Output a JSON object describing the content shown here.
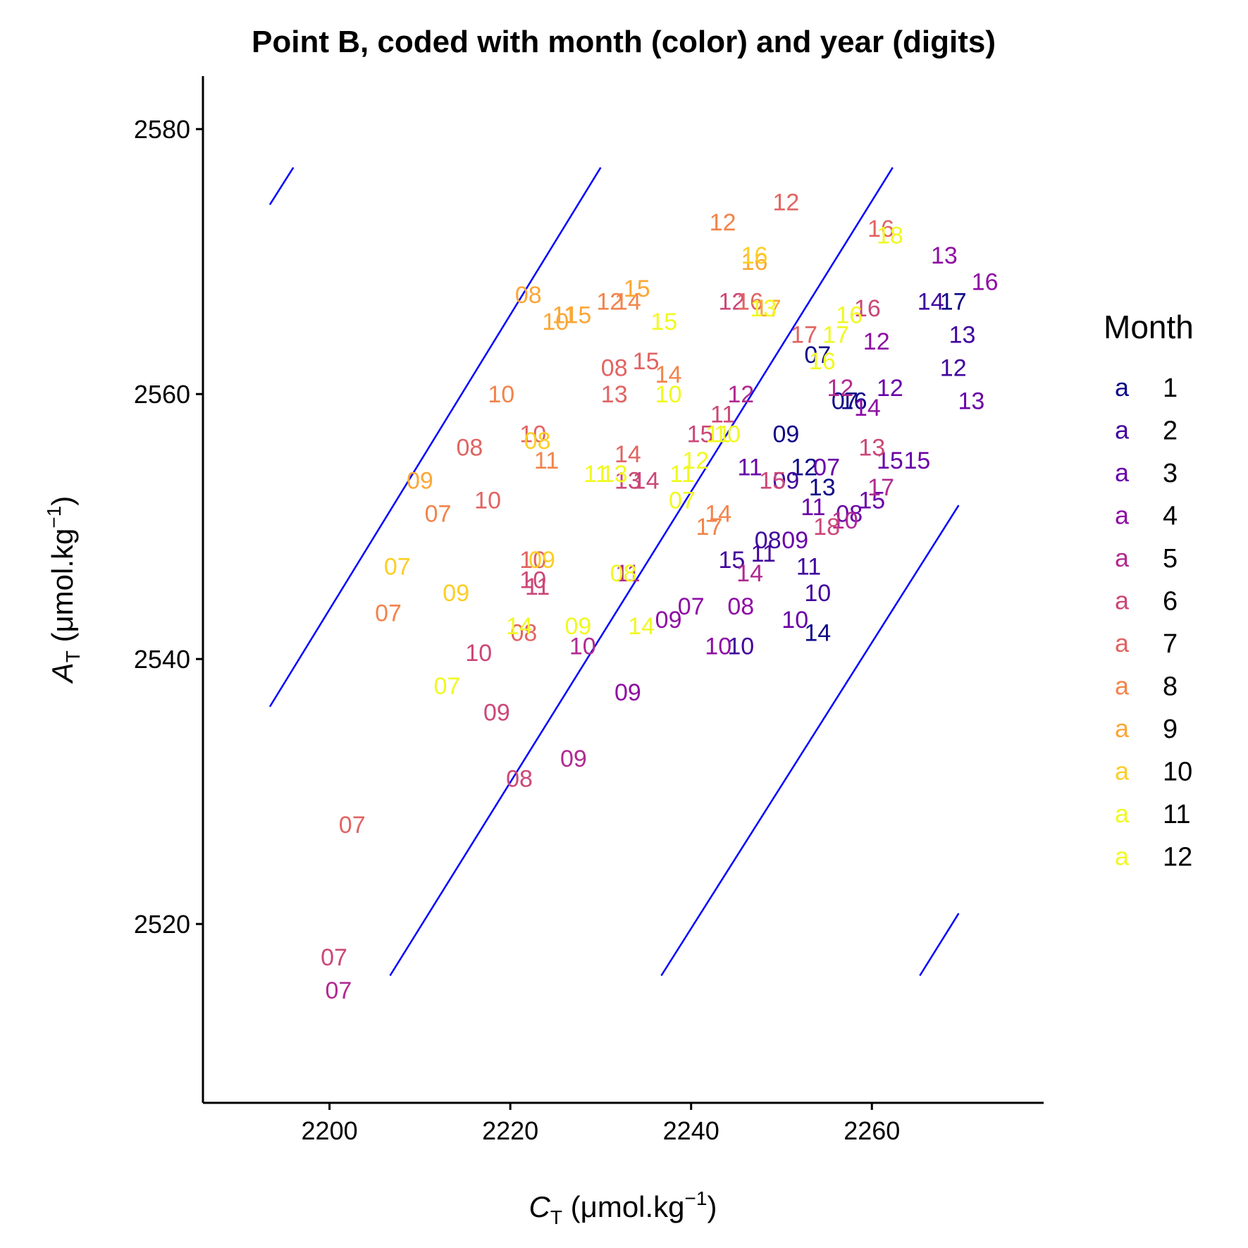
{
  "chart_data": {
    "type": "scatter",
    "title": "Point B, coded with month (color) and year (digits)",
    "xlabel": {
      "symbol": "C",
      "subscript": "T",
      "unit_prefix": " (",
      "unit_mu": "μ",
      "unit_main": "mol.kg",
      "unit_sup": "−1",
      "unit_suffix": ")"
    },
    "ylabel": {
      "symbol": "A",
      "subscript": "T",
      "unit_prefix": " (",
      "unit_mu": "μ",
      "unit_main": "mol.kg",
      "unit_sup": "−1",
      "unit_suffix": ")"
    },
    "xlim": [
      2186,
      2279
    ],
    "ylim": [
      2506.5,
      2584
    ],
    "xticks": [
      2200,
      2220,
      2240,
      2260
    ],
    "yticks": [
      2520,
      2540,
      2560,
      2580
    ],
    "grid": false,
    "legend": {
      "title": "Month",
      "placement": "right",
      "key_glyph": "a",
      "entries": [
        {
          "label": "1",
          "color": "#0d0887"
        },
        {
          "label": "2",
          "color": "#41049d"
        },
        {
          "label": "3",
          "color": "#6a00a8"
        },
        {
          "label": "4",
          "color": "#8f0da4"
        },
        {
          "label": "5",
          "color": "#b12a90"
        },
        {
          "label": "6",
          "color": "#cc4778"
        },
        {
          "label": "7",
          "color": "#e16462"
        },
        {
          "label": "8",
          "color": "#f2844b"
        },
        {
          "label": "9",
          "color": "#fca636"
        },
        {
          "label": "10",
          "color": "#fcce25"
        },
        {
          "label": "11",
          "color": "#f0f921"
        },
        {
          "label": "12",
          "color": "#f0f921"
        }
      ]
    },
    "reference_lines_color": "#0000ff",
    "reference_lines": [
      {
        "x1": 2193.4,
        "y1": 2574.3,
        "x2": 2196.0,
        "y2": 2577.1
      },
      {
        "x1": 2193.4,
        "y1": 2536.4,
        "x2": 2230.0,
        "y2": 2577.1
      },
      {
        "x1": 2206.7,
        "y1": 2516.1,
        "x2": 2262.3,
        "y2": 2577.1
      },
      {
        "x1": 2236.7,
        "y1": 2516.1,
        "x2": 2269.6,
        "y2": 2551.6
      },
      {
        "x1": 2265.3,
        "y1": 2516.1,
        "x2": 2269.6,
        "y2": 2520.8
      }
    ],
    "points": [
      {
        "x": 2254.0,
        "y": 2563.0,
        "label": "07",
        "month": 1
      },
      {
        "x": 2257.0,
        "y": 2559.5,
        "label": "07",
        "month": 1
      },
      {
        "x": 2250.5,
        "y": 2557.0,
        "label": "09",
        "month": 1
      },
      {
        "x": 2252.5,
        "y": 2554.5,
        "label": "12",
        "month": 1
      },
      {
        "x": 2254.5,
        "y": 2553.0,
        "label": "13",
        "month": 1
      },
      {
        "x": 2258.0,
        "y": 2559.5,
        "label": "16",
        "month": 1
      },
      {
        "x": 2269.0,
        "y": 2567.0,
        "label": "17",
        "month": 1
      },
      {
        "x": 2254.0,
        "y": 2542.0,
        "label": "14",
        "month": 1
      },
      {
        "x": 2248.5,
        "y": 2549.0,
        "label": "08",
        "month": 2
      },
      {
        "x": 2250.5,
        "y": 2553.5,
        "label": "09",
        "month": 2
      },
      {
        "x": 2248.0,
        "y": 2548.0,
        "label": "11",
        "month": 2
      },
      {
        "x": 2253.0,
        "y": 2547.0,
        "label": "11",
        "month": 2
      },
      {
        "x": 2254.0,
        "y": 2545.0,
        "label": "10",
        "month": 2
      },
      {
        "x": 2245.5,
        "y": 2541.0,
        "label": "10",
        "month": 2
      },
      {
        "x": 2244.5,
        "y": 2547.5,
        "label": "15",
        "month": 2
      },
      {
        "x": 2269.0,
        "y": 2562.0,
        "label": "12",
        "month": 2
      },
      {
        "x": 2270.0,
        "y": 2564.5,
        "label": "13",
        "month": 2
      },
      {
        "x": 2266.5,
        "y": 2567.0,
        "label": "14",
        "month": 2
      },
      {
        "x": 2265.0,
        "y": 2555.0,
        "label": "15",
        "month": 3
      },
      {
        "x": 2255.0,
        "y": 2554.5,
        "label": "07",
        "month": 3
      },
      {
        "x": 2257.5,
        "y": 2551.0,
        "label": "08",
        "month": 3
      },
      {
        "x": 2253.5,
        "y": 2551.5,
        "label": "11",
        "month": 3
      },
      {
        "x": 2251.5,
        "y": 2543.0,
        "label": "10",
        "month": 3
      },
      {
        "x": 2262.0,
        "y": 2560.5,
        "label": "12",
        "month": 3
      },
      {
        "x": 2271.0,
        "y": 2559.5,
        "label": "13",
        "month": 3
      },
      {
        "x": 2262.0,
        "y": 2555.0,
        "label": "15",
        "month": 3
      },
      {
        "x": 2246.5,
        "y": 2554.5,
        "label": "11",
        "month": 3
      },
      {
        "x": 2251.5,
        "y": 2549.0,
        "label": "09",
        "month": 3
      },
      {
        "x": 2260.0,
        "y": 2552.0,
        "label": "15",
        "month": 3
      },
      {
        "x": 2260.5,
        "y": 2564.0,
        "label": "12",
        "month": 4
      },
      {
        "x": 2259.5,
        "y": 2559.0,
        "label": "14",
        "month": 4
      },
      {
        "x": 2268.0,
        "y": 2570.5,
        "label": "13",
        "month": 4
      },
      {
        "x": 2272.5,
        "y": 2568.5,
        "label": "16",
        "month": 4
      },
      {
        "x": 2243.0,
        "y": 2541.0,
        "label": "10",
        "month": 4
      },
      {
        "x": 2237.5,
        "y": 2543.0,
        "label": "09",
        "month": 4
      },
      {
        "x": 2240.0,
        "y": 2544.0,
        "label": "07",
        "month": 4
      },
      {
        "x": 2245.5,
        "y": 2544.0,
        "label": "08",
        "month": 4
      },
      {
        "x": 2233.0,
        "y": 2537.5,
        "label": "09",
        "month": 4
      },
      {
        "x": 2227.0,
        "y": 2532.5,
        "label": "09",
        "month": 5
      },
      {
        "x": 2228.0,
        "y": 2541.0,
        "label": "10",
        "month": 5
      },
      {
        "x": 2233.0,
        "y": 2546.5,
        "label": "11",
        "month": 5
      },
      {
        "x": 2246.5,
        "y": 2546.5,
        "label": "14",
        "month": 5
      },
      {
        "x": 2245.5,
        "y": 2560.0,
        "label": "12",
        "month": 5
      },
      {
        "x": 2256.5,
        "y": 2560.5,
        "label": "12",
        "month": 5
      },
      {
        "x": 2261.0,
        "y": 2553.0,
        "label": "17",
        "month": 5
      },
      {
        "x": 2257.0,
        "y": 2550.5,
        "label": "10",
        "month": 5
      },
      {
        "x": 2201.0,
        "y": 2515.0,
        "label": "07",
        "month": 5
      },
      {
        "x": 2200.5,
        "y": 2517.5,
        "label": "07",
        "month": 6
      },
      {
        "x": 2221.0,
        "y": 2531.0,
        "label": "08",
        "month": 6
      },
      {
        "x": 2218.5,
        "y": 2536.0,
        "label": "09",
        "month": 6
      },
      {
        "x": 2216.5,
        "y": 2540.5,
        "label": "10",
        "month": 6
      },
      {
        "x": 2222.5,
        "y": 2546.0,
        "label": "10",
        "month": 6
      },
      {
        "x": 2223.0,
        "y": 2545.5,
        "label": "11",
        "month": 6
      },
      {
        "x": 2233.0,
        "y": 2553.5,
        "label": "13",
        "month": 6
      },
      {
        "x": 2235.0,
        "y": 2553.5,
        "label": "14",
        "month": 6
      },
      {
        "x": 2241.0,
        "y": 2557.0,
        "label": "15",
        "month": 6
      },
      {
        "x": 2243.5,
        "y": 2558.5,
        "label": "11",
        "month": 6
      },
      {
        "x": 2244.5,
        "y": 2567.0,
        "label": "12",
        "month": 6
      },
      {
        "x": 2259.5,
        "y": 2566.5,
        "label": "16",
        "month": 6
      },
      {
        "x": 2260.0,
        "y": 2556.0,
        "label": "13",
        "month": 6
      },
      {
        "x": 2255.0,
        "y": 2550.0,
        "label": "18",
        "month": 6
      },
      {
        "x": 2249.0,
        "y": 2553.5,
        "label": "15",
        "month": 6
      },
      {
        "x": 2202.5,
        "y": 2527.5,
        "label": "07",
        "month": 7
      },
      {
        "x": 2217.5,
        "y": 2552.0,
        "label": "10",
        "month": 7
      },
      {
        "x": 2222.5,
        "y": 2547.5,
        "label": "10",
        "month": 7
      },
      {
        "x": 2221.5,
        "y": 2542.0,
        "label": "08",
        "month": 7
      },
      {
        "x": 2215.5,
        "y": 2556.0,
        "label": "08",
        "month": 7
      },
      {
        "x": 2222.5,
        "y": 2557.0,
        "label": "10",
        "month": 7
      },
      {
        "x": 2231.5,
        "y": 2562.0,
        "label": "08",
        "month": 7
      },
      {
        "x": 2235.0,
        "y": 2562.5,
        "label": "15",
        "month": 7
      },
      {
        "x": 2231.5,
        "y": 2560.0,
        "label": "13",
        "month": 7
      },
      {
        "x": 2233.0,
        "y": 2555.5,
        "label": "14",
        "month": 7
      },
      {
        "x": 2250.5,
        "y": 2574.5,
        "label": "12",
        "month": 7
      },
      {
        "x": 2261.0,
        "y": 2572.5,
        "label": "16",
        "month": 7
      },
      {
        "x": 2246.5,
        "y": 2567.0,
        "label": "16",
        "month": 7
      },
      {
        "x": 2252.5,
        "y": 2564.5,
        "label": "17",
        "month": 7
      },
      {
        "x": 2206.5,
        "y": 2543.5,
        "label": "07",
        "month": 8
      },
      {
        "x": 2212.0,
        "y": 2551.0,
        "label": "07",
        "month": 8
      },
      {
        "x": 2224.0,
        "y": 2555.0,
        "label": "11",
        "month": 8
      },
      {
        "x": 2237.5,
        "y": 2561.5,
        "label": "14",
        "month": 8
      },
      {
        "x": 2243.5,
        "y": 2573.0,
        "label": "12",
        "month": 8
      },
      {
        "x": 2231.0,
        "y": 2567.0,
        "label": "12",
        "month": 8
      },
      {
        "x": 2233.0,
        "y": 2567.0,
        "label": "14",
        "month": 8
      },
      {
        "x": 2243.0,
        "y": 2551.0,
        "label": "14",
        "month": 8
      },
      {
        "x": 2242.0,
        "y": 2550.0,
        "label": "17",
        "month": 8
      },
      {
        "x": 2219.0,
        "y": 2560.0,
        "label": "10",
        "month": 8
      },
      {
        "x": 2222.0,
        "y": 2567.5,
        "label": "08",
        "month": 9
      },
      {
        "x": 2225.0,
        "y": 2565.5,
        "label": "10",
        "month": 9
      },
      {
        "x": 2226.0,
        "y": 2566.0,
        "label": "11",
        "month": 9
      },
      {
        "x": 2227.5,
        "y": 2566.0,
        "label": "15",
        "month": 9
      },
      {
        "x": 2234.0,
        "y": 2568.0,
        "label": "15",
        "month": 9
      },
      {
        "x": 2247.0,
        "y": 2570.0,
        "label": "16",
        "month": 9
      },
      {
        "x": 2248.5,
        "y": 2566.5,
        "label": "17",
        "month": 9
      },
      {
        "x": 2210.0,
        "y": 2553.5,
        "label": "09",
        "month": 9
      },
      {
        "x": 2207.5,
        "y": 2547.0,
        "label": "07",
        "month": 10
      },
      {
        "x": 2214.0,
        "y": 2545.0,
        "label": "09",
        "month": 10
      },
      {
        "x": 2223.5,
        "y": 2547.5,
        "label": "09",
        "month": 10
      },
      {
        "x": 2223.0,
        "y": 2556.5,
        "label": "08",
        "month": 10
      },
      {
        "x": 2247.0,
        "y": 2570.5,
        "label": "16",
        "month": 10
      },
      {
        "x": 2213.0,
        "y": 2538.0,
        "label": "07",
        "month": 11
      },
      {
        "x": 2221.0,
        "y": 2542.5,
        "label": "14",
        "month": 11
      },
      {
        "x": 2229.5,
        "y": 2554.0,
        "label": "11",
        "month": 11
      },
      {
        "x": 2231.5,
        "y": 2554.0,
        "label": "13",
        "month": 11
      },
      {
        "x": 2237.0,
        "y": 2565.5,
        "label": "15",
        "month": 11
      },
      {
        "x": 2248.0,
        "y": 2566.5,
        "label": "13",
        "month": 11
      },
      {
        "x": 2244.0,
        "y": 2557.0,
        "label": "10",
        "month": 11
      },
      {
        "x": 2254.5,
        "y": 2562.5,
        "label": "16",
        "month": 11
      },
      {
        "x": 2256.0,
        "y": 2564.5,
        "label": "17",
        "month": 11
      },
      {
        "x": 2232.5,
        "y": 2546.5,
        "label": "08",
        "month": 11
      },
      {
        "x": 2227.5,
        "y": 2542.5,
        "label": "09",
        "month": 12
      },
      {
        "x": 2234.5,
        "y": 2542.5,
        "label": "14",
        "month": 12
      },
      {
        "x": 2237.5,
        "y": 2560.0,
        "label": "10",
        "month": 12
      },
      {
        "x": 2240.5,
        "y": 2555.0,
        "label": "12",
        "month": 12
      },
      {
        "x": 2239.0,
        "y": 2552.0,
        "label": "07",
        "month": 12
      },
      {
        "x": 2239.0,
        "y": 2554.0,
        "label": "11",
        "month": 12
      },
      {
        "x": 2243.0,
        "y": 2557.0,
        "label": "11",
        "month": 12
      },
      {
        "x": 2257.5,
        "y": 2566.0,
        "label": "16",
        "month": 12
      },
      {
        "x": 2262.0,
        "y": 2572.0,
        "label": "18",
        "month": 12
      }
    ]
  }
}
